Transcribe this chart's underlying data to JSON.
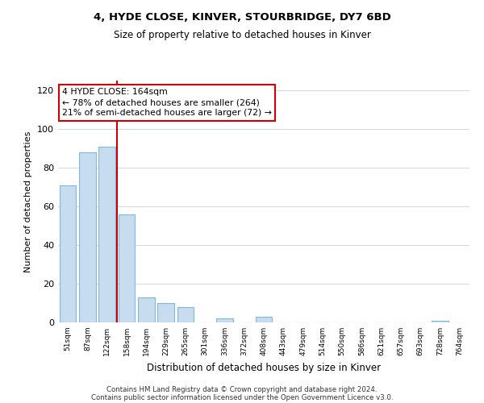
{
  "title1": "4, HYDE CLOSE, KINVER, STOURBRIDGE, DY7 6BD",
  "title2": "Size of property relative to detached houses in Kinver",
  "xlabel": "Distribution of detached houses by size in Kinver",
  "ylabel": "Number of detached properties",
  "bin_labels": [
    "51sqm",
    "87sqm",
    "122sqm",
    "158sqm",
    "194sqm",
    "229sqm",
    "265sqm",
    "301sqm",
    "336sqm",
    "372sqm",
    "408sqm",
    "443sqm",
    "479sqm",
    "514sqm",
    "550sqm",
    "586sqm",
    "621sqm",
    "657sqm",
    "693sqm",
    "728sqm",
    "764sqm"
  ],
  "bar_heights": [
    71,
    88,
    91,
    56,
    13,
    10,
    8,
    0,
    2,
    0,
    3,
    0,
    0,
    0,
    0,
    0,
    0,
    0,
    0,
    1,
    0
  ],
  "bar_color": "#c8dcf0",
  "bar_edge_color": "#7fb8d8",
  "highlight_line_color": "#cc0000",
  "highlight_line_bin": 3,
  "annotation_title": "4 HYDE CLOSE: 164sqm",
  "annotation_line1": "← 78% of detached houses are smaller (264)",
  "annotation_line2": "21% of semi-detached houses are larger (72) →",
  "annotation_box_color": "#ffffff",
  "annotation_box_edge": "#cc0000",
  "ylim": [
    0,
    125
  ],
  "yticks": [
    0,
    20,
    40,
    60,
    80,
    100,
    120
  ],
  "footer1": "Contains HM Land Registry data © Crown copyright and database right 2024.",
  "footer2": "Contains public sector information licensed under the Open Government Licence v3.0."
}
